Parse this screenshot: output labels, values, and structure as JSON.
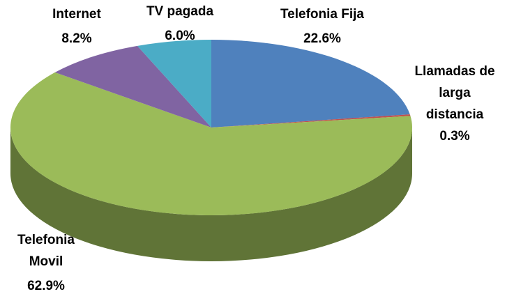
{
  "chart_data": {
    "type": "pie",
    "categories": [
      "Telefonia Fija",
      "Llamadas de larga distancia",
      "Telefonia Movil",
      "Internet",
      "TV pagada"
    ],
    "values": [
      22.6,
      0.3,
      62.9,
      8.2,
      6.0
    ],
    "value_labels": [
      "22.6%",
      "0.3%",
      "62.9%",
      "8.2%",
      "6.0%"
    ],
    "colors": [
      "#4f81bd",
      "#c0504d",
      "#9bbb59",
      "#8064a2",
      "#4bacc6"
    ]
  }
}
